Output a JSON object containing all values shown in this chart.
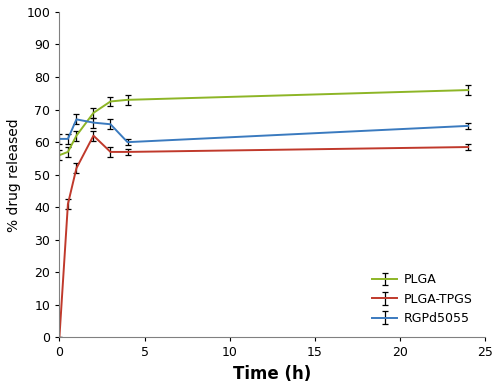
{
  "series": [
    {
      "label": "PLGA",
      "color": "#8db526",
      "x": [
        0,
        0.5,
        1,
        2,
        3,
        4,
        24
      ],
      "y": [
        56,
        57,
        62,
        69,
        72.5,
        73,
        76
      ],
      "yerr": [
        1.5,
        1.5,
        1.5,
        1.5,
        1.5,
        1.5,
        1.5
      ]
    },
    {
      "label": "PLGA-TPGS",
      "color": "#c0392b",
      "x": [
        0,
        0.5,
        1,
        2,
        3,
        4,
        24
      ],
      "y": [
        0,
        41,
        52,
        62,
        57,
        57,
        58.5
      ],
      "yerr": [
        0,
        1.5,
        1.5,
        1.5,
        1.5,
        1.0,
        1.0
      ]
    },
    {
      "label": "RGPd5055",
      "color": "#3a7abf",
      "x": [
        0,
        0.5,
        1,
        2,
        3,
        4,
        24
      ],
      "y": [
        61,
        61,
        67,
        66,
        65.5,
        60,
        65
      ],
      "yerr": [
        1.5,
        1.5,
        1.5,
        1.5,
        1.5,
        1.0,
        1.0
      ]
    }
  ],
  "xlabel": "Time (h)",
  "ylabel": "% drug released",
  "xlim": [
    0,
    25
  ],
  "ylim": [
    0,
    100
  ],
  "yticks": [
    0,
    10,
    20,
    30,
    40,
    50,
    60,
    70,
    80,
    90,
    100
  ],
  "xticks": [
    0,
    5,
    10,
    15,
    20,
    25
  ],
  "figsize": [
    5.0,
    3.9
  ],
  "dpi": 100
}
